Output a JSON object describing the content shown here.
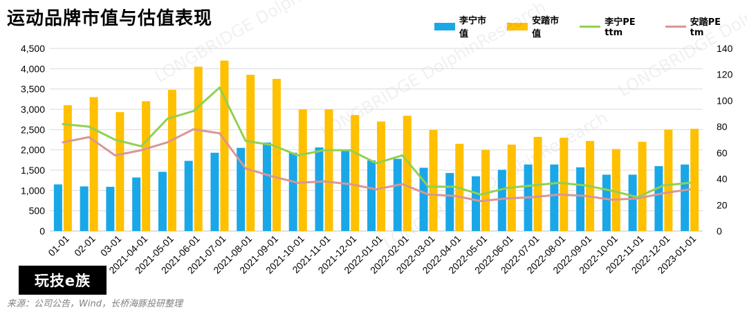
{
  "title": "运动品牌市值与估值表现",
  "source": "来源：公司公告，Wind，长桥海豚投研整理",
  "logo_text": "玩技e族",
  "watermark": "LONGBRIDGE DolphinResearch",
  "colors": {
    "lining_cap": "#1aa7e8",
    "anta_cap": "#ffc000",
    "lining_pe": "#92d050",
    "anta_pe": "#d99694"
  },
  "chart_data": {
    "type": "bar",
    "categories": [
      "2021-01-01",
      "2021-02-01",
      "2021-03-01",
      "2021-04-01",
      "2021-05-01",
      "2021-06-01",
      "2021-07-01",
      "2021-08-01",
      "2021-09-01",
      "2021-10-01",
      "2021-11-01",
      "2021-12-01",
      "2022-01-01",
      "2022-02-01",
      "2022-03-01",
      "2022-04-01",
      "2022-05-01",
      "2022-06-01",
      "2022-07-01",
      "2022-08-01",
      "2022-09-01",
      "2022-10-01",
      "2022-11-01",
      "2022-12-01",
      "2023-01-01"
    ],
    "category_labels": [
      "01-01",
      "02-01",
      "03-01",
      "2021-04-01",
      "2021-05-01",
      "2021-06-01",
      "2021-07-01",
      "2021-08-01",
      "2021-09-01",
      "2021-10-01",
      "2021-11-01",
      "2021-12-01",
      "2022-01-01",
      "2022-02-01",
      "2022-03-01",
      "2022-04-01",
      "2022-05-01",
      "2022-06-01",
      "2022-07-01",
      "2022-08-01",
      "2022-09-01",
      "2022-10-01",
      "2022-11-01",
      "2022-12-01",
      "2023-01-01"
    ],
    "series": [
      {
        "name": "李宁市值",
        "type": "bar",
        "axis": "left",
        "values": [
          1150,
          1100,
          1090,
          1320,
          1460,
          1730,
          1930,
          2050,
          2180,
          1930,
          2060,
          2000,
          1740,
          1780,
          1560,
          1430,
          1350,
          1510,
          1640,
          1640,
          1570,
          1390,
          1390,
          1600,
          1640
        ]
      },
      {
        "name": "安踏市值",
        "type": "bar",
        "axis": "left",
        "values": [
          3100,
          3300,
          2930,
          3200,
          3480,
          4050,
          4200,
          3850,
          3750,
          3000,
          3000,
          2860,
          2700,
          2840,
          2490,
          2150,
          2000,
          2130,
          2320,
          2300,
          2220,
          2020,
          2200,
          2500,
          2520
        ]
      },
      {
        "name": "李宁PE ttm",
        "type": "line",
        "axis": "right",
        "values": [
          82,
          80,
          70,
          65,
          86,
          92,
          110,
          69,
          66,
          58,
          62,
          62,
          52,
          58,
          34,
          34,
          28,
          33,
          35,
          37,
          35,
          31,
          26,
          35,
          37
        ]
      },
      {
        "name": "安踏PE tm",
        "type": "line",
        "axis": "right",
        "values": [
          68,
          72,
          58,
          62,
          68,
          78,
          75,
          48,
          42,
          37,
          38,
          36,
          32,
          36,
          28,
          27,
          23,
          25,
          26,
          28,
          27,
          24,
          25,
          29,
          32
        ]
      }
    ],
    "y_left": {
      "min": 0,
      "max": 4500,
      "step": 500,
      "ticks": [
        "0",
        "500",
        "1,000",
        "1,500",
        "2,000",
        "2,500",
        "3,000",
        "3,500",
        "4,000",
        "4,500"
      ]
    },
    "y_right": {
      "min": 0,
      "max": 140,
      "step": 20,
      "ticks": [
        "0",
        "20",
        "40",
        "60",
        "80",
        "100",
        "120",
        "140"
      ]
    },
    "grid": true,
    "legend_position": "top-right"
  }
}
